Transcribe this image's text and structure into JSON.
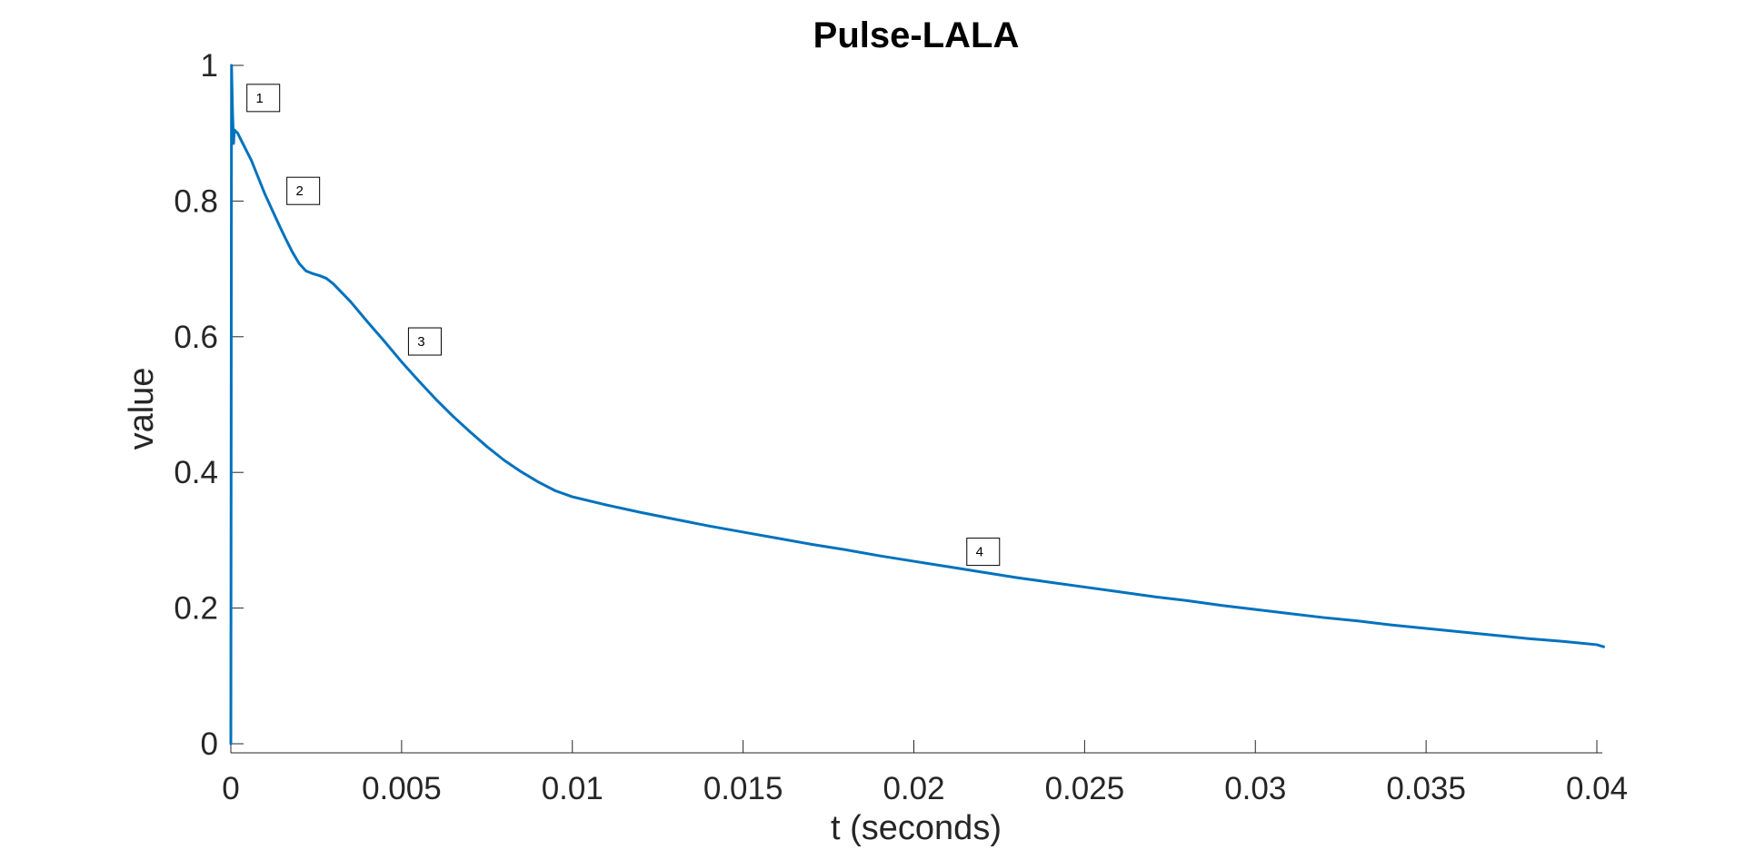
{
  "chart_data": {
    "type": "line",
    "title": "Pulse-LALA",
    "xlabel": "t (seconds)",
    "ylabel": "value",
    "xlim": [
      0,
      0.04
    ],
    "ylim": [
      0,
      1
    ],
    "xticks": [
      0,
      0.005,
      0.01,
      0.015,
      0.02,
      0.025,
      0.03,
      0.035,
      0.04
    ],
    "xtick_labels": [
      "0",
      "0.005",
      "0.01",
      "0.015",
      "0.02",
      "0.025",
      "0.03",
      "0.035",
      "0.04"
    ],
    "yticks": [
      0,
      0.2,
      0.4,
      0.6,
      0.8,
      1
    ],
    "ytick_labels": [
      "0",
      "0.2",
      "0.4",
      "0.6",
      "0.8",
      "1"
    ],
    "grid": false,
    "color": "#0072BD",
    "series": [
      {
        "x": [
          0,
          2e-05,
          5e-05,
          8e-05,
          0.0001,
          0.0002,
          0.0004,
          0.0006,
          0.0008,
          0.001,
          0.0012,
          0.0014,
          0.0016,
          0.0018,
          0.002,
          0.0022,
          0.0024,
          0.0026,
          0.0028,
          0.003,
          0.0035,
          0.004,
          0.0045,
          0.005,
          0.0055,
          0.006,
          0.0065,
          0.007,
          0.0075,
          0.008,
          0.0085,
          0.009,
          0.0095,
          0.01,
          0.011,
          0.012,
          0.013,
          0.014,
          0.015,
          0.016,
          0.017,
          0.018,
          0.019,
          0.02,
          0.021,
          0.022,
          0.023,
          0.024,
          0.025,
          0.026,
          0.027,
          0.028,
          0.029,
          0.03,
          0.031,
          0.032,
          0.033,
          0.034,
          0.035,
          0.036,
          0.037,
          0.038,
          0.039,
          0.04,
          0.0402
        ],
        "y": [
          0,
          1.0,
          0.93,
          0.885,
          0.905,
          0.9,
          0.88,
          0.86,
          0.835,
          0.81,
          0.788,
          0.766,
          0.745,
          0.725,
          0.708,
          0.697,
          0.693,
          0.69,
          0.686,
          0.678,
          0.652,
          0.622,
          0.593,
          0.563,
          0.535,
          0.508,
          0.483,
          0.46,
          0.438,
          0.418,
          0.401,
          0.386,
          0.373,
          0.364,
          0.352,
          0.341,
          0.331,
          0.321,
          0.312,
          0.303,
          0.294,
          0.286,
          0.277,
          0.269,
          0.261,
          0.253,
          0.245,
          0.238,
          0.231,
          0.224,
          0.217,
          0.211,
          0.204,
          0.198,
          0.192,
          0.186,
          0.181,
          0.175,
          0.17,
          0.165,
          0.16,
          0.155,
          0.151,
          0.146,
          0.143
        ]
      }
    ],
    "annotations": [
      {
        "text": "1",
        "x": 0.00095,
        "y": 0.952
      },
      {
        "text": "2",
        "x": 0.00212,
        "y": 0.815
      },
      {
        "text": "3",
        "x": 0.00568,
        "y": 0.593
      },
      {
        "text": "4",
        "x": 0.02203,
        "y": 0.283
      }
    ]
  }
}
